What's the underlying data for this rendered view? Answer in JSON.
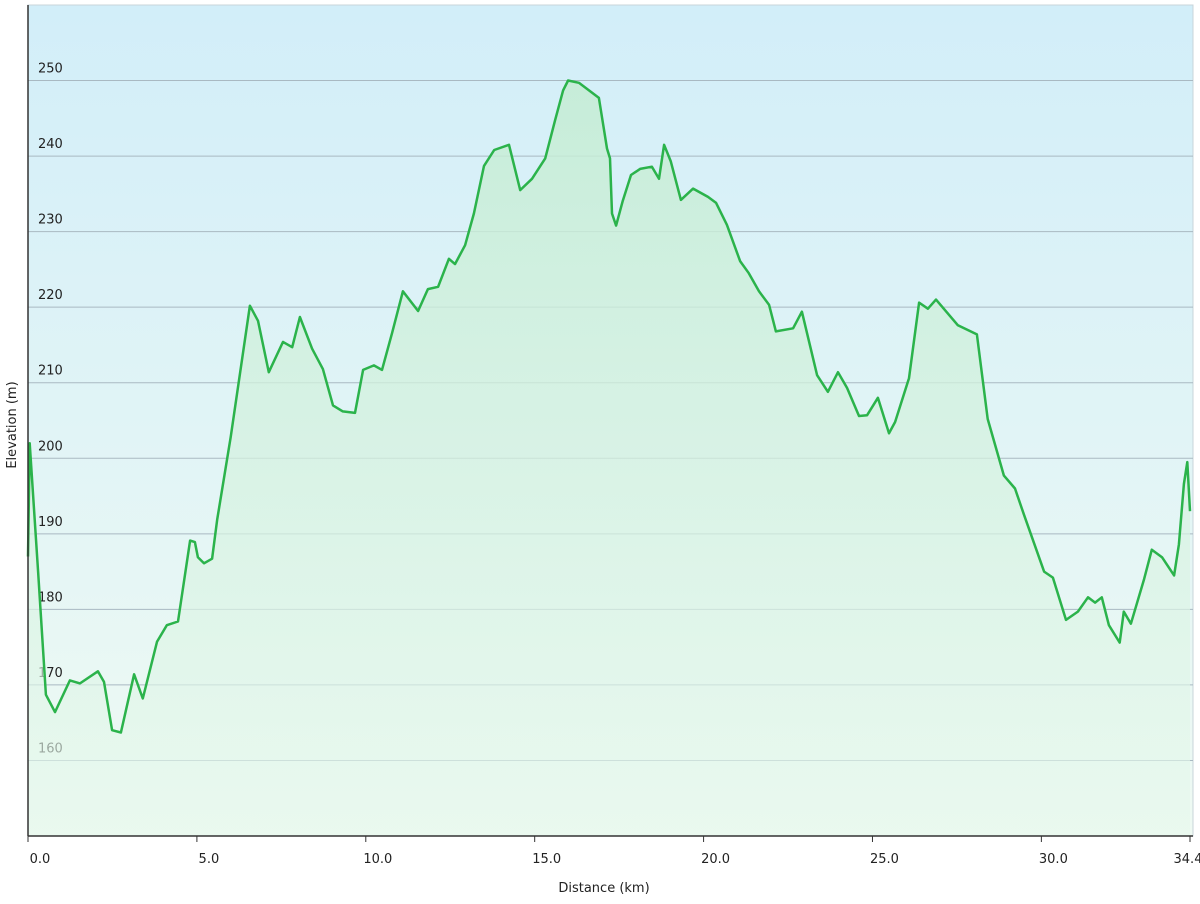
{
  "chart_data": {
    "type": "line",
    "x_label": "Distance  (km)",
    "y_label": "Elevation (m)",
    "x": [
      0,
      0.05,
      0.3,
      0.53,
      0.8,
      1.24,
      1.54,
      2.07,
      2.25,
      2.49,
      2.75,
      3.14,
      3.4,
      3.82,
      4.11,
      4.44,
      4.8,
      4.94,
      5.03,
      5.21,
      5.45,
      5.6,
      6.0,
      6.57,
      6.81,
      7.13,
      7.55,
      7.82,
      8.05,
      8.41,
      8.73,
      9.03,
      9.32,
      9.68,
      9.92,
      10.24,
      10.48,
      10.78,
      11.1,
      11.55,
      11.84,
      12.14,
      12.46,
      12.64,
      12.94,
      13.2,
      13.5,
      13.8,
      14.24,
      14.57,
      14.92,
      15.31,
      15.6,
      15.84,
      15.99,
      16.31,
      16.9,
      17.14,
      17.23,
      17.29,
      17.41,
      17.61,
      17.85,
      18.12,
      18.47,
      18.68,
      18.83,
      19.03,
      19.33,
      19.69,
      20.13,
      20.37,
      20.69,
      21.08,
      21.34,
      21.64,
      21.94,
      22.14,
      22.65,
      22.91,
      23.36,
      23.68,
      23.98,
      24.25,
      24.6,
      24.84,
      25.16,
      25.49,
      25.67,
      26.08,
      26.38,
      26.64,
      26.88,
      27.53,
      28.09,
      28.41,
      28.89,
      29.22,
      29.48,
      30.08,
      30.34,
      30.73,
      31.08,
      31.38,
      31.59,
      31.79,
      32.0,
      32.32,
      32.44,
      32.65,
      33.04,
      33.27,
      33.57,
      33.93,
      34.07,
      34.22,
      34.32,
      34.4
    ],
    "values": [
      187,
      202,
      185,
      168.7,
      166.4,
      170.6,
      170.2,
      171.8,
      170.4,
      164,
      163.7,
      171.4,
      168.2,
      175.7,
      177.9,
      178.4,
      189.1,
      188.9,
      186.9,
      186.1,
      186.7,
      191.9,
      202.8,
      220.2,
      218.2,
      211.4,
      215.4,
      214.7,
      218.7,
      214.5,
      211.8,
      207,
      206.2,
      206,
      211.7,
      212.3,
      211.7,
      216.6,
      222.1,
      219.5,
      222.4,
      222.7,
      226.4,
      225.7,
      228.2,
      232.4,
      238.7,
      240.8,
      241.5,
      235.5,
      237,
      239.7,
      244.7,
      248.7,
      250,
      249.7,
      247.7,
      241,
      239.7,
      232.4,
      230.8,
      234.1,
      237.5,
      238.3,
      238.6,
      237,
      241.5,
      239.3,
      234.2,
      235.7,
      234.6,
      233.8,
      230.9,
      226.1,
      224.5,
      222.1,
      220.3,
      216.8,
      217.2,
      219.4,
      211,
      208.8,
      211.4,
      209.3,
      205.6,
      205.7,
      208,
      203.3,
      204.8,
      210.6,
      220.6,
      219.8,
      221,
      217.6,
      216.4,
      205.2,
      197.7,
      196,
      192.6,
      185,
      184.2,
      178.6,
      179.7,
      181.6,
      180.9,
      181.6,
      177.9,
      175.6,
      179.7,
      178.1,
      184,
      187.9,
      186.9,
      184.5,
      188.6,
      196.6,
      199.5,
      193
    ],
    "color": "#2bb34b",
    "xlim": [
      0,
      34.4
    ],
    "ylim": [
      150,
      260
    ],
    "xticks": [
      {
        "value": 0,
        "label": "0.0"
      },
      {
        "value": 5,
        "label": "5.0"
      },
      {
        "value": 10,
        "label": "10.0"
      },
      {
        "value": 15,
        "label": "15.0"
      },
      {
        "value": 20,
        "label": "20.0"
      },
      {
        "value": 25,
        "label": "25.0"
      },
      {
        "value": 30,
        "label": "30.0"
      },
      34.4
    ],
    "yticks": [
      160,
      170,
      180,
      190,
      200,
      210,
      220,
      230,
      240,
      250
    ],
    "grid": true
  }
}
